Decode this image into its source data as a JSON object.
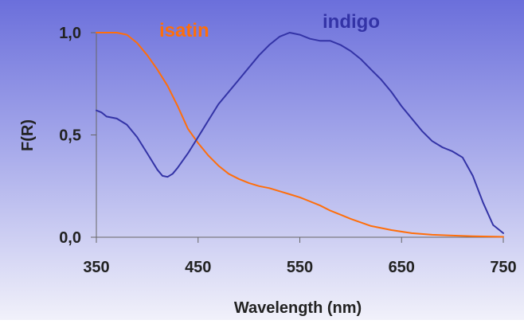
{
  "chart_data": {
    "type": "line",
    "title": "",
    "xlabel": "Wavelength (nm)",
    "ylabel": "F(R)",
    "xlim": [
      350,
      750
    ],
    "ylim": [
      0,
      1
    ],
    "x_ticks": [
      350,
      450,
      550,
      650,
      750
    ],
    "x_tick_labels": [
      "350",
      "450",
      "550",
      "650",
      "750"
    ],
    "y_ticks": [
      0,
      0.5,
      1
    ],
    "y_tick_labels": [
      "0,0",
      "0,5",
      "1,0"
    ],
    "grid": false,
    "legend": "inline labels",
    "series": [
      {
        "name": "isatin",
        "color": "#FF6E0A",
        "x": [
          350,
          360,
          370,
          380,
          390,
          400,
          410,
          420,
          430,
          440,
          450,
          460,
          470,
          480,
          490,
          500,
          510,
          520,
          530,
          540,
          550,
          560,
          570,
          580,
          590,
          600,
          620,
          640,
          660,
          680,
          700,
          720,
          750
        ],
        "y": [
          1.0,
          1.0,
          1.0,
          0.99,
          0.95,
          0.89,
          0.82,
          0.74,
          0.64,
          0.53,
          0.46,
          0.4,
          0.35,
          0.31,
          0.285,
          0.265,
          0.25,
          0.24,
          0.225,
          0.21,
          0.195,
          0.175,
          0.155,
          0.13,
          0.11,
          0.09,
          0.055,
          0.035,
          0.02,
          0.012,
          0.008,
          0.005,
          0.002
        ]
      },
      {
        "name": "indigo",
        "color": "#3333A6",
        "x": [
          350,
          355,
          360,
          370,
          380,
          390,
          400,
          410,
          415,
          420,
          425,
          430,
          440,
          450,
          460,
          470,
          480,
          490,
          500,
          510,
          520,
          530,
          540,
          550,
          560,
          570,
          580,
          590,
          600,
          610,
          620,
          630,
          640,
          650,
          660,
          670,
          680,
          690,
          695,
          700,
          710,
          720,
          730,
          740,
          750
        ],
        "y": [
          0.62,
          0.61,
          0.59,
          0.58,
          0.55,
          0.49,
          0.41,
          0.33,
          0.3,
          0.295,
          0.31,
          0.34,
          0.41,
          0.49,
          0.57,
          0.65,
          0.71,
          0.77,
          0.83,
          0.89,
          0.94,
          0.98,
          1.0,
          0.99,
          0.97,
          0.96,
          0.96,
          0.94,
          0.91,
          0.87,
          0.82,
          0.77,
          0.71,
          0.64,
          0.58,
          0.52,
          0.47,
          0.44,
          0.43,
          0.42,
          0.39,
          0.3,
          0.17,
          0.06,
          0.02
        ]
      }
    ]
  }
}
